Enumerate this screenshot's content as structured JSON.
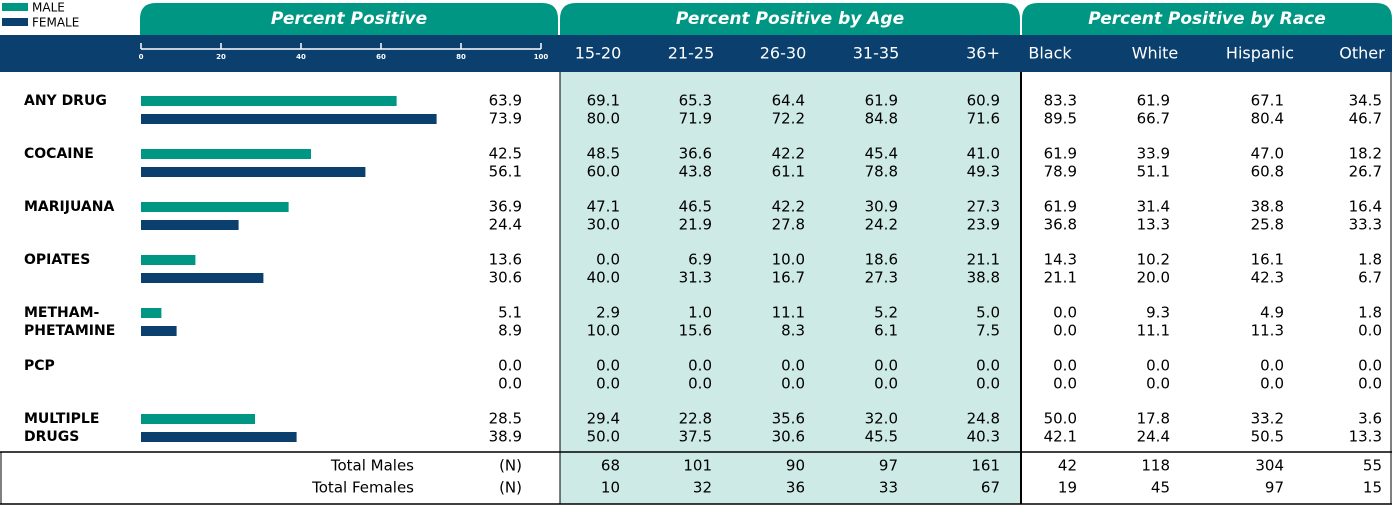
{
  "legend": [
    {
      "label": "MALE",
      "color": "#009684"
    },
    {
      "label": "FEMALE",
      "color": "#0b3f6e"
    }
  ],
  "sections": [
    "Percent Positive",
    "Percent Positive by Age",
    "Percent Positive by Race"
  ],
  "scale": {
    "lim": [
      0,
      100
    ],
    "ticks": [
      0,
      20,
      40,
      60,
      80,
      100
    ]
  },
  "age_groups": [
    "15-20",
    "21-25",
    "26-30",
    "31-35",
    "36+"
  ],
  "races": [
    "Black",
    "White",
    "Hispanic",
    "Other"
  ],
  "rows": [
    {
      "label": [
        "ANY DRUG"
      ],
      "male": "63.9",
      "female": "73.9",
      "male_age": [
        "69.1",
        "65.3",
        "64.4",
        "61.9",
        "60.9"
      ],
      "female_age": [
        "80.0",
        "71.9",
        "72.2",
        "84.8",
        "71.6"
      ],
      "male_race": [
        "83.3",
        "61.9",
        "67.1",
        "34.5"
      ],
      "female_race": [
        "89.5",
        "66.7",
        "80.4",
        "46.7"
      ]
    },
    {
      "label": [
        "COCAINE"
      ],
      "male": "42.5",
      "female": "56.1",
      "male_age": [
        "48.5",
        "36.6",
        "42.2",
        "45.4",
        "41.0"
      ],
      "female_age": [
        "60.0",
        "43.8",
        "61.1",
        "78.8",
        "49.3"
      ],
      "male_race": [
        "61.9",
        "33.9",
        "47.0",
        "18.2"
      ],
      "female_race": [
        "78.9",
        "51.1",
        "60.8",
        "26.7"
      ]
    },
    {
      "label": [
        "MARIJUANA"
      ],
      "male": "36.9",
      "female": "24.4",
      "male_age": [
        "47.1",
        "46.5",
        "42.2",
        "30.9",
        "27.3"
      ],
      "female_age": [
        "30.0",
        "21.9",
        "27.8",
        "24.2",
        "23.9"
      ],
      "male_race": [
        "61.9",
        "31.4",
        "38.8",
        "16.4"
      ],
      "female_race": [
        "36.8",
        "13.3",
        "25.8",
        "33.3"
      ]
    },
    {
      "label": [
        "OPIATES"
      ],
      "male": "13.6",
      "female": "30.6",
      "male_age": [
        "0.0",
        "6.9",
        "10.0",
        "18.6",
        "21.1"
      ],
      "female_age": [
        "40.0",
        "31.3",
        "16.7",
        "27.3",
        "38.8"
      ],
      "male_race": [
        "14.3",
        "10.2",
        "16.1",
        "1.8"
      ],
      "female_race": [
        "21.1",
        "20.0",
        "42.3",
        "6.7"
      ]
    },
    {
      "label": [
        "METHAM-",
        "PHETAMINE"
      ],
      "male": "5.1",
      "female": "8.9",
      "male_age": [
        "2.9",
        "1.0",
        "11.1",
        "5.2",
        "5.0"
      ],
      "female_age": [
        "10.0",
        "15.6",
        "8.3",
        "6.1",
        "7.5"
      ],
      "male_race": [
        "0.0",
        "9.3",
        "4.9",
        "1.8"
      ],
      "female_race": [
        "0.0",
        "11.1",
        "11.3",
        "0.0"
      ]
    },
    {
      "label": [
        "PCP"
      ],
      "male": "0.0",
      "female": "0.0",
      "male_age": [
        "0.0",
        "0.0",
        "0.0",
        "0.0",
        "0.0"
      ],
      "female_age": [
        "0.0",
        "0.0",
        "0.0",
        "0.0",
        "0.0"
      ],
      "male_race": [
        "0.0",
        "0.0",
        "0.0",
        "0.0"
      ],
      "female_race": [
        "0.0",
        "0.0",
        "0.0",
        "0.0"
      ]
    },
    {
      "label": [
        "MULTIPLE",
        "DRUGS"
      ],
      "male": "28.5",
      "female": "38.9",
      "male_age": [
        "29.4",
        "22.8",
        "35.6",
        "32.0",
        "24.8"
      ],
      "female_age": [
        "50.0",
        "37.5",
        "30.6",
        "45.5",
        "40.3"
      ],
      "male_race": [
        "50.0",
        "17.8",
        "33.2",
        "3.6"
      ],
      "female_race": [
        "42.1",
        "24.4",
        "50.5",
        "13.3"
      ]
    }
  ],
  "totals": [
    {
      "label": "Total Males",
      "unit": "(N)",
      "age": [
        68,
        101,
        90,
        97,
        161
      ],
      "race": [
        42,
        118,
        304,
        55
      ]
    },
    {
      "label": "Total Females",
      "unit": "(N)",
      "age": [
        10,
        32,
        36,
        33,
        67
      ],
      "race": [
        19,
        45,
        97,
        15
      ]
    }
  ]
}
